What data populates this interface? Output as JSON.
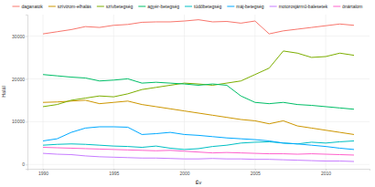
{
  "chart_data": {
    "type": "line",
    "x_label": "Év",
    "y_label": "Halál",
    "x": [
      1990,
      1991,
      1992,
      1993,
      1994,
      1995,
      1996,
      1997,
      1998,
      1999,
      2000,
      2001,
      2002,
      2003,
      2004,
      2005,
      2006,
      2007,
      2008,
      2009,
      2010,
      2011,
      2012
    ],
    "xlim": [
      1988.9,
      2013.1
    ],
    "xticks": [
      1990,
      1995,
      2000,
      2005,
      2010
    ],
    "ylim": [
      -1000,
      35000
    ],
    "yticks": [
      0,
      10000,
      20000,
      30000
    ],
    "grid": true,
    "legend": "top",
    "series": [
      {
        "name": "daganatok",
        "color": "#F8766D",
        "values": [
          30500,
          31000,
          31500,
          32200,
          32000,
          32500,
          32700,
          33200,
          33300,
          33300,
          33500,
          33800,
          33300,
          33400,
          33000,
          33500,
          30500,
          31200,
          31600,
          32000,
          32400,
          32800,
          32500
        ]
      },
      {
        "name": "szívizom-elhalás",
        "color": "#CD9600",
        "values": [
          14500,
          14600,
          14800,
          15000,
          14200,
          14500,
          14800,
          14000,
          13500,
          13000,
          12500,
          12000,
          11500,
          11000,
          10500,
          10200,
          9500,
          10200,
          9000,
          8500,
          8000,
          7500,
          7000
        ]
      },
      {
        "name": "szívbetegség",
        "color": "#7CAE00",
        "values": [
          13500,
          14000,
          15000,
          15500,
          16000,
          15800,
          16500,
          17500,
          18000,
          18500,
          19000,
          18800,
          18500,
          19000,
          19500,
          21000,
          22500,
          26500,
          26000,
          25000,
          25200,
          26000,
          25500
        ]
      },
      {
        "name": "agyér-betegség",
        "color": "#00BE67",
        "values": [
          21000,
          20700,
          20400,
          20200,
          19500,
          19700,
          20000,
          19000,
          19200,
          19000,
          18800,
          18500,
          18800,
          18500,
          16000,
          14500,
          14200,
          14500,
          14000,
          13800,
          13500,
          13200,
          12900
        ]
      },
      {
        "name": "tüdőbetegség",
        "color": "#00BFC4",
        "values": [
          4500,
          4700,
          4800,
          4700,
          4500,
          4300,
          4200,
          4000,
          4300,
          3800,
          3500,
          3700,
          4200,
          4500,
          5000,
          5200,
          5300,
          5000,
          4800,
          5200,
          5000,
          5300,
          5500
        ]
      },
      {
        "name": "máj-betegség",
        "color": "#00A9FF",
        "values": [
          5500,
          6000,
          7500,
          8500,
          8800,
          8800,
          8700,
          7000,
          7200,
          7500,
          7000,
          6800,
          6500,
          6200,
          6000,
          5800,
          5500,
          5000,
          4800,
          4500,
          4200,
          3800,
          3500
        ]
      },
      {
        "name": "motorosjármű-balesetek",
        "color": "#C77CFF",
        "values": [
          2600,
          2400,
          2300,
          2000,
          1800,
          1700,
          1600,
          1500,
          1500,
          1400,
          1300,
          1300,
          1400,
          1300,
          1300,
          1200,
          1200,
          1100,
          1000,
          900,
          800,
          800,
          700
        ]
      },
      {
        "name": "önártalom",
        "color": "#FF61CC",
        "values": [
          4000,
          3900,
          3800,
          3700,
          3600,
          3500,
          3400,
          3300,
          3200,
          3300,
          3100,
          2900,
          2700,
          2800,
          2700,
          2600,
          2500,
          2500,
          2400,
          2500,
          2400,
          2300,
          2200
        ]
      }
    ]
  }
}
